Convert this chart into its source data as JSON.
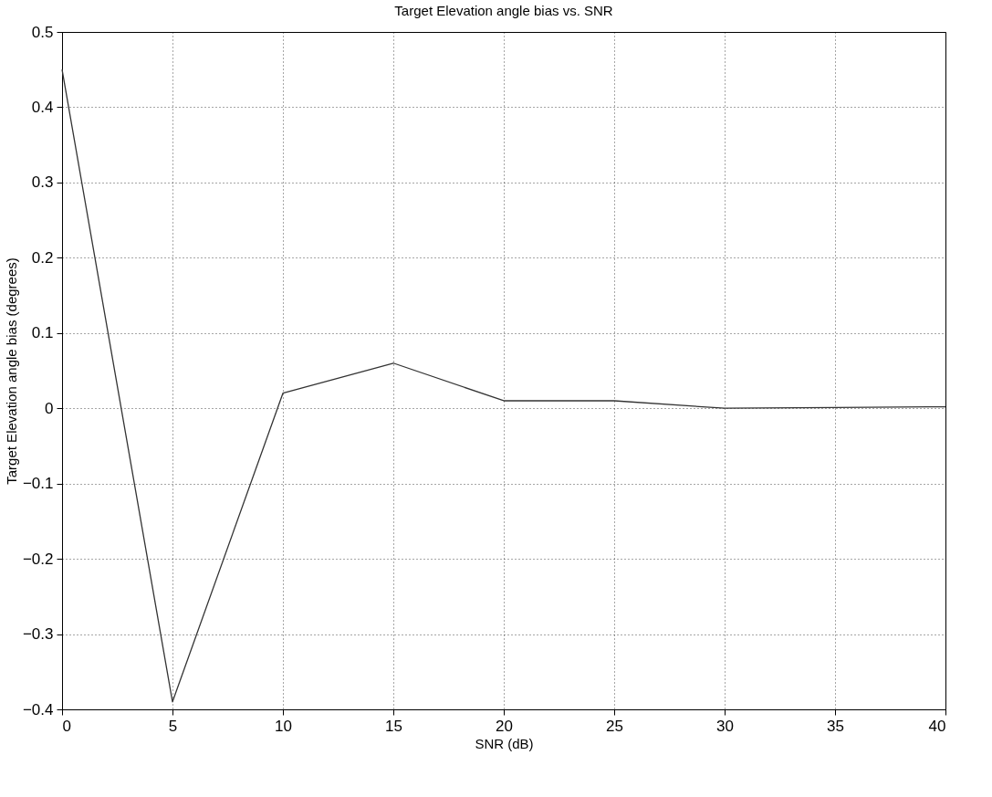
{
  "chart_data": {
    "type": "line",
    "title": "Target Elevation angle bias vs. SNR",
    "xlabel": "SNR (dB)",
    "ylabel": "Target Elevation angle bias (degrees)",
    "x": [
      0,
      5,
      10,
      15,
      20,
      25,
      30,
      35,
      40
    ],
    "series": [
      {
        "color": "#333333",
        "values": [
          0.45,
          -0.39,
          0.02,
          0.06,
          0.01,
          0.01,
          0.0,
          0.001,
          0.002
        ]
      }
    ],
    "xlim": [
      0,
      40
    ],
    "xticks": [
      0,
      5,
      10,
      15,
      20,
      25,
      30,
      35,
      40
    ],
    "ylim": [
      -0.4,
      0.5
    ],
    "yticks": [
      -0.4,
      -0.3,
      -0.2,
      -0.1,
      0,
      0.1,
      0.2,
      0.3,
      0.4,
      0.5
    ],
    "grid": true,
    "line_style": "solid",
    "marker": "none"
  }
}
